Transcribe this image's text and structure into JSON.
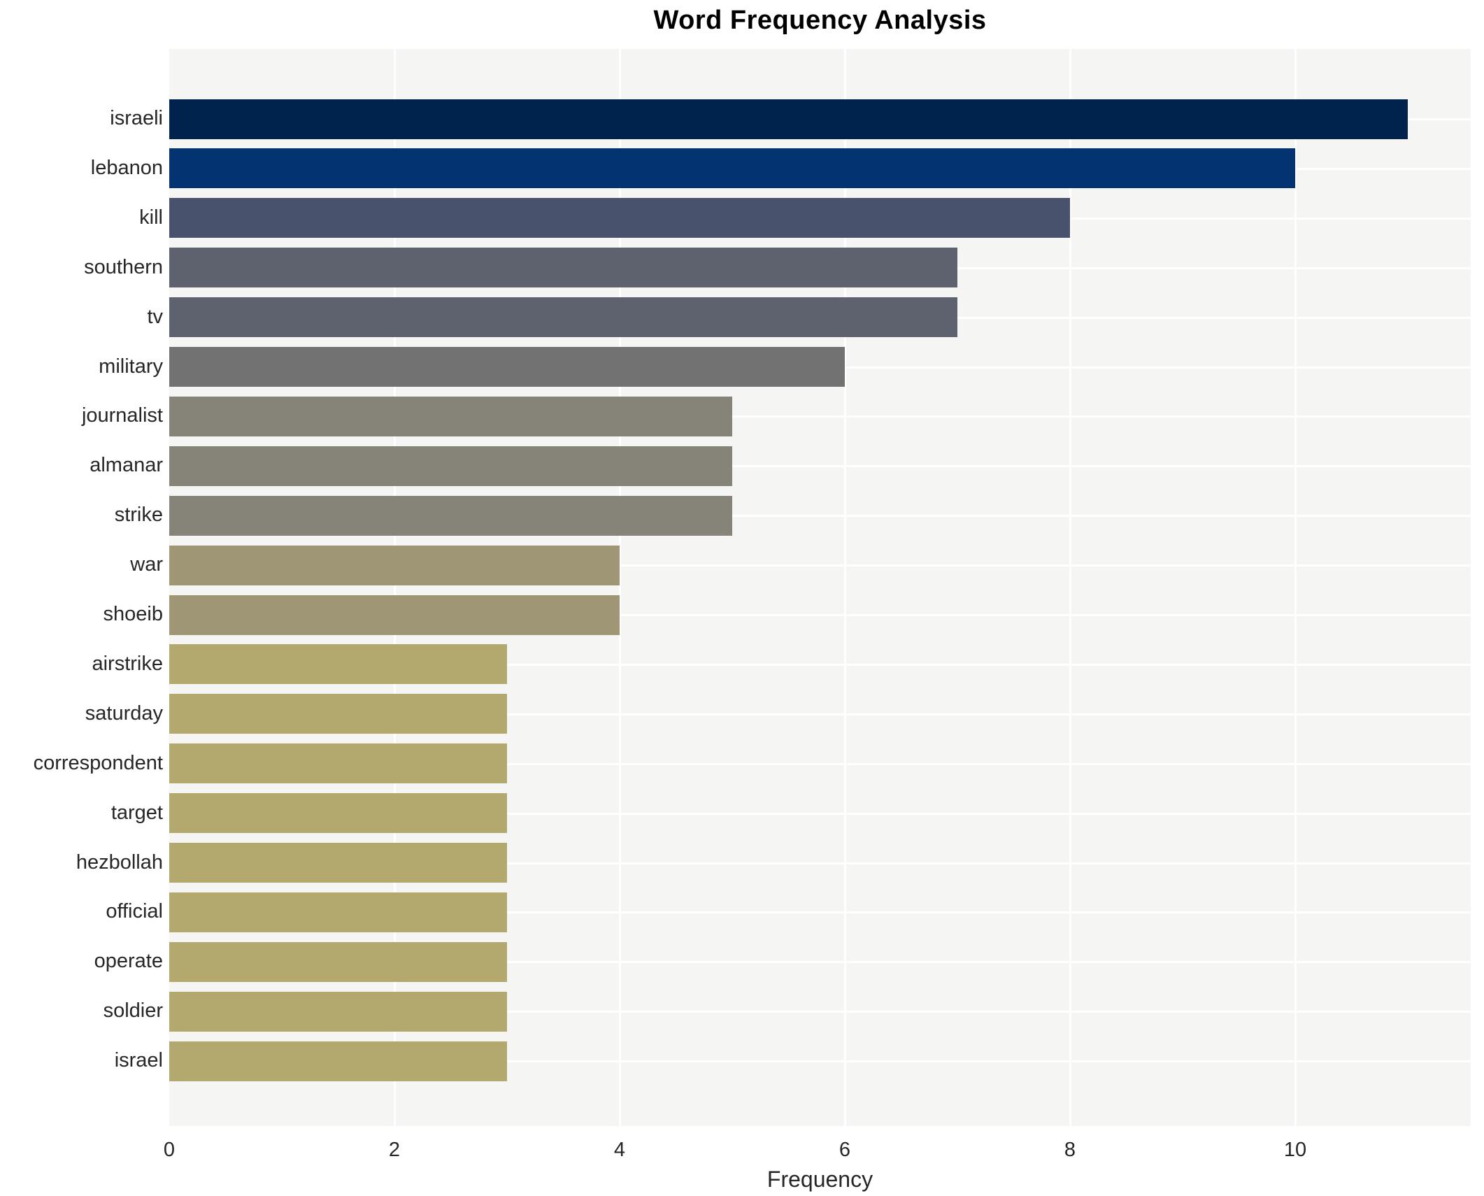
{
  "chart_data": {
    "type": "bar",
    "orientation": "horizontal",
    "title": "Word Frequency Analysis",
    "xlabel": "Frequency",
    "ylabel": "",
    "categories": [
      "israeli",
      "lebanon",
      "kill",
      "southern",
      "tv",
      "military",
      "journalist",
      "almanar",
      "strike",
      "war",
      "shoeib",
      "airstrike",
      "saturday",
      "correspondent",
      "target",
      "hezbollah",
      "official",
      "operate",
      "soldier",
      "israel"
    ],
    "values": [
      11,
      10,
      8,
      7,
      7,
      6,
      5,
      5,
      5,
      4,
      4,
      3,
      3,
      3,
      3,
      3,
      3,
      3,
      3,
      3
    ],
    "bar_colors": [
      "#00234e",
      "#043372",
      "#48526d",
      "#5d626e",
      "#5d626e",
      "#727272",
      "#868479",
      "#868479",
      "#868479",
      "#9e9674",
      "#9e9674",
      "#b3a86e",
      "#b3a86e",
      "#b3a86e",
      "#b3a86e",
      "#b3a86e",
      "#b3a86e",
      "#b3a86e",
      "#b3a86e",
      "#b3a86e"
    ],
    "x_ticks": [
      0,
      2,
      4,
      6,
      8,
      10
    ],
    "xlim": [
      0,
      11.56
    ],
    "grid": "on",
    "legend": "none",
    "plot_background": "#f5f5f3",
    "grid_color": "#ffffff",
    "text_color": "#262626"
  }
}
